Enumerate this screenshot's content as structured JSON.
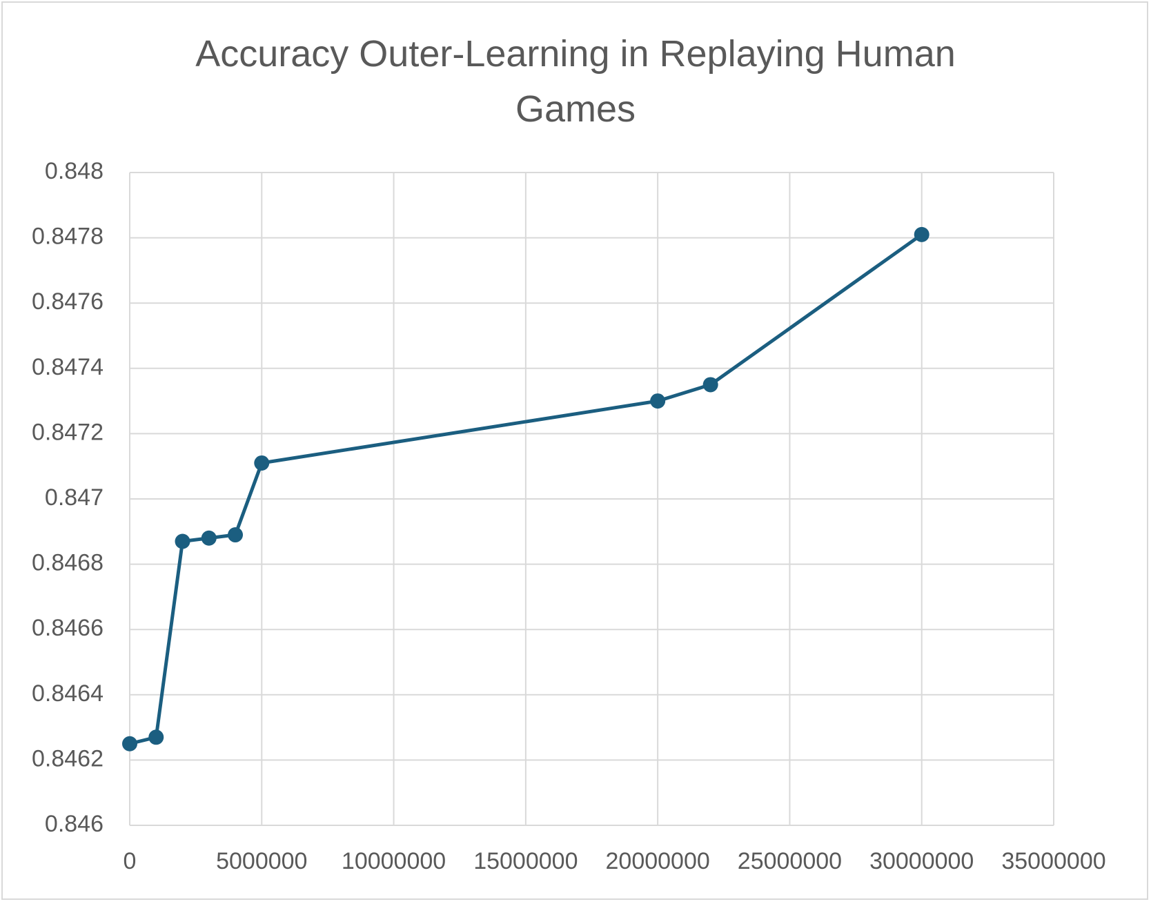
{
  "chart_data": {
    "type": "line",
    "title": "Accuracy Outer-Learning in Replaying Human Games",
    "x": [
      0,
      1000000,
      2000000,
      3000000,
      4000000,
      5000000,
      20000000,
      22000000,
      30000000
    ],
    "series": [
      {
        "color": "#1b5e80",
        "values": [
          0.84625,
          0.84627,
          0.84687,
          0.84688,
          0.84689,
          0.84711,
          0.8473,
          0.84735,
          0.84781
        ]
      }
    ],
    "xlim": [
      0,
      35000000
    ],
    "xticks": [
      0,
      5000000,
      10000000,
      15000000,
      20000000,
      25000000,
      30000000,
      35000000
    ],
    "ylim": [
      0.846,
      0.848
    ],
    "yticks": [
      0.846,
      0.8462,
      0.8464,
      0.8466,
      0.8468,
      0.847,
      0.8472,
      0.8474,
      0.8476,
      0.8478,
      0.848
    ],
    "grid": true,
    "markers": true
  }
}
